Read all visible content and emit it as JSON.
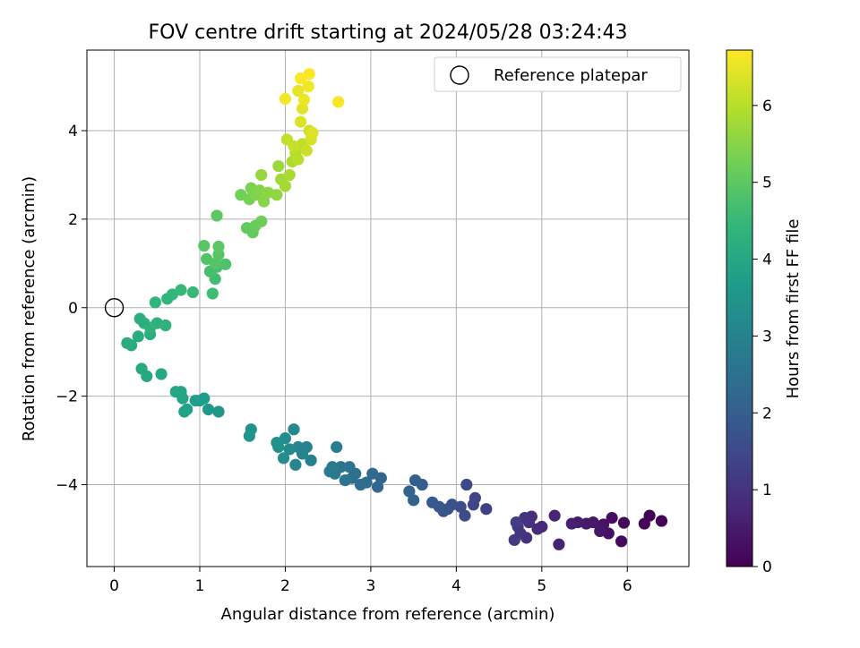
{
  "chart_data": {
    "type": "scatter",
    "title": "FOV centre drift starting at 2024/05/28 03:24:43",
    "xlabel": "Angular distance from reference (arcmin)",
    "ylabel": "Rotation from reference (arcmin)",
    "xlim": [
      -0.32,
      6.72
    ],
    "ylim": [
      -5.85,
      5.82
    ],
    "xticks": [
      0,
      1,
      2,
      3,
      4,
      5,
      6
    ],
    "xtick_labels": [
      "0",
      "1",
      "2",
      "3",
      "4",
      "5",
      "6"
    ],
    "yticks": [
      -4,
      -2,
      0,
      2,
      4
    ],
    "ytick_labels": [
      "−4",
      "−2",
      "0",
      "2",
      "4"
    ],
    "grid": true,
    "legend": {
      "position": "top-right",
      "entries": [
        "Reference platepar"
      ]
    },
    "reference_point": {
      "x": 0,
      "y": 0,
      "label": "Reference platepar"
    },
    "colorbar": {
      "label": "Hours from first FF file",
      "colormap": "viridis",
      "range": [
        0,
        6.72
      ],
      "ticks": [
        0,
        1,
        2,
        3,
        4,
        5,
        6
      ],
      "tick_labels": [
        "0",
        "1",
        "2",
        "3",
        "4",
        "5",
        "6"
      ]
    },
    "colormap_stops": [
      "#440154",
      "#482878",
      "#3e4989",
      "#31688e",
      "#26828e",
      "#1f9e89",
      "#35b779",
      "#6ece58",
      "#b5de2b",
      "#fde725"
    ],
    "series": [
      {
        "points": [
          [
            6.4,
            -4.82,
            0.02
          ],
          [
            6.26,
            -4.7,
            0.05
          ],
          [
            6.2,
            -4.88,
            0.1
          ],
          [
            5.96,
            -4.86,
            0.15
          ],
          [
            5.93,
            -5.28,
            0.2
          ],
          [
            5.82,
            -4.75,
            0.25
          ],
          [
            5.78,
            -5.1,
            0.3
          ],
          [
            5.72,
            -4.9,
            0.35
          ],
          [
            5.68,
            -5.05,
            0.4
          ],
          [
            5.6,
            -4.85,
            0.45
          ],
          [
            5.52,
            -4.88,
            0.5
          ],
          [
            5.42,
            -4.85,
            0.55
          ],
          [
            5.35,
            -4.88,
            0.6
          ],
          [
            5.2,
            -5.35,
            0.65
          ],
          [
            5.15,
            -4.7,
            0.7
          ],
          [
            5.0,
            -4.95,
            0.75
          ],
          [
            4.95,
            -5.0,
            0.8
          ],
          [
            4.88,
            -4.72,
            0.85
          ],
          [
            4.85,
            -4.85,
            0.9
          ],
          [
            4.82,
            -5.2,
            0.95
          ],
          [
            4.8,
            -4.75,
            1.0
          ],
          [
            4.75,
            -5.1,
            1.05
          ],
          [
            4.72,
            -4.95,
            1.1
          ],
          [
            4.68,
            -5.25,
            1.15
          ],
          [
            4.7,
            -4.85,
            1.2
          ],
          [
            4.35,
            -4.55,
            1.3
          ],
          [
            4.22,
            -4.3,
            1.4
          ],
          [
            4.2,
            -4.45,
            1.45
          ],
          [
            4.12,
            -4.0,
            1.5
          ],
          [
            4.1,
            -4.7,
            1.55
          ],
          [
            4.05,
            -4.5,
            1.6
          ],
          [
            3.95,
            -4.45,
            1.7
          ],
          [
            3.9,
            -4.55,
            1.75
          ],
          [
            3.85,
            -4.6,
            1.8
          ],
          [
            3.8,
            -4.5,
            1.85
          ],
          [
            3.72,
            -4.4,
            1.9
          ],
          [
            3.6,
            -4.0,
            2.0
          ],
          [
            3.52,
            -3.9,
            2.05
          ],
          [
            3.5,
            -4.35,
            2.1
          ],
          [
            3.45,
            -4.15,
            2.15
          ],
          [
            3.12,
            -3.85,
            2.2
          ],
          [
            3.08,
            -4.05,
            2.25
          ],
          [
            3.02,
            -3.75,
            2.3
          ],
          [
            2.95,
            -3.95,
            2.35
          ],
          [
            2.88,
            -4.0,
            2.4
          ],
          [
            2.82,
            -3.75,
            2.45
          ],
          [
            2.78,
            -3.85,
            2.5
          ],
          [
            2.75,
            -3.6,
            2.55
          ],
          [
            2.7,
            -3.9,
            2.6
          ],
          [
            2.65,
            -3.6,
            2.65
          ],
          [
            2.58,
            -3.75,
            2.7
          ],
          [
            2.55,
            -3.6,
            2.75
          ],
          [
            2.52,
            -3.7,
            2.8
          ],
          [
            2.6,
            -3.15,
            2.85
          ],
          [
            2.3,
            -3.45,
            2.9
          ],
          [
            2.25,
            -3.15,
            2.95
          ],
          [
            2.2,
            -3.3,
            3.0
          ],
          [
            2.15,
            -3.15,
            3.05
          ],
          [
            2.12,
            -3.55,
            3.1
          ],
          [
            2.1,
            -2.75,
            3.15
          ],
          [
            2.05,
            -3.2,
            3.2
          ],
          [
            2.0,
            -2.95,
            3.25
          ],
          [
            1.98,
            -3.4,
            3.3
          ],
          [
            1.92,
            -3.15,
            3.35
          ],
          [
            1.9,
            -3.05,
            3.4
          ],
          [
            1.6,
            -2.75,
            3.45
          ],
          [
            1.58,
            -2.9,
            3.5
          ],
          [
            1.22,
            -2.35,
            3.55
          ],
          [
            1.1,
            -2.3,
            3.6
          ],
          [
            1.05,
            -2.05,
            3.65
          ],
          [
            1.0,
            -2.1,
            3.7
          ],
          [
            0.95,
            -2.1,
            3.75
          ],
          [
            0.85,
            -2.3,
            3.8
          ],
          [
            0.82,
            -2.35,
            3.85
          ],
          [
            0.8,
            -2.05,
            3.9
          ],
          [
            0.78,
            -1.9,
            3.95
          ],
          [
            0.72,
            -1.9,
            3.97
          ],
          [
            0.55,
            -1.5,
            4.0
          ],
          [
            0.38,
            -1.55,
            4.02
          ],
          [
            0.32,
            -1.38,
            4.05
          ],
          [
            0.2,
            -0.85,
            4.1
          ],
          [
            0.15,
            -0.8,
            4.12
          ],
          [
            0.28,
            -0.65,
            4.15
          ],
          [
            0.42,
            -0.6,
            4.18
          ],
          [
            0.3,
            -0.25,
            4.2
          ],
          [
            0.35,
            -0.35,
            4.22
          ],
          [
            0.5,
            -0.35,
            4.25
          ],
          [
            0.42,
            -0.45,
            4.28
          ],
          [
            0.6,
            -0.4,
            4.3
          ],
          [
            0.48,
            0.12,
            4.35
          ],
          [
            0.62,
            0.2,
            4.4
          ],
          [
            0.68,
            0.3,
            4.45
          ],
          [
            0.78,
            0.4,
            4.5
          ],
          [
            0.92,
            0.35,
            4.55
          ],
          [
            1.15,
            0.32,
            4.6
          ],
          [
            1.18,
            0.65,
            4.65
          ],
          [
            1.12,
            0.82,
            4.7
          ],
          [
            1.2,
            0.92,
            4.75
          ],
          [
            1.3,
            0.98,
            4.8
          ],
          [
            1.08,
            1.1,
            4.85
          ],
          [
            1.18,
            1.0,
            4.9
          ],
          [
            1.22,
            1.2,
            4.92
          ],
          [
            1.05,
            1.4,
            4.95
          ],
          [
            1.22,
            1.38,
            4.98
          ],
          [
            1.2,
            2.08,
            5.0
          ],
          [
            1.55,
            1.8,
            5.05
          ],
          [
            1.62,
            1.7,
            5.1
          ],
          [
            1.65,
            1.85,
            5.15
          ],
          [
            1.72,
            1.95,
            5.2
          ],
          [
            1.48,
            2.55,
            5.25
          ],
          [
            1.58,
            2.45,
            5.3
          ],
          [
            1.6,
            2.7,
            5.35
          ],
          [
            1.65,
            2.55,
            5.4
          ],
          [
            1.7,
            2.65,
            5.45
          ],
          [
            1.75,
            2.4,
            5.5
          ],
          [
            1.8,
            2.6,
            5.55
          ],
          [
            1.9,
            2.55,
            5.6
          ],
          [
            1.72,
            3.0,
            5.65
          ],
          [
            1.92,
            3.2,
            5.7
          ],
          [
            1.95,
            2.9,
            5.75
          ],
          [
            2.0,
            2.75,
            5.8
          ],
          [
            2.05,
            3.0,
            5.85
          ],
          [
            2.08,
            3.3,
            5.9
          ],
          [
            2.12,
            3.5,
            5.95
          ],
          [
            2.15,
            3.35,
            6.0
          ],
          [
            2.2,
            3.7,
            6.05
          ],
          [
            2.02,
            3.8,
            6.1
          ],
          [
            2.1,
            3.65,
            6.15
          ],
          [
            2.25,
            3.55,
            6.2
          ],
          [
            2.28,
            4.0,
            6.25
          ],
          [
            2.3,
            3.8,
            6.3
          ],
          [
            2.18,
            4.2,
            6.35
          ],
          [
            2.32,
            3.95,
            6.4
          ],
          [
            2.2,
            4.5,
            6.45
          ],
          [
            2.15,
            4.9,
            6.5
          ],
          [
            2.22,
            4.7,
            6.55
          ],
          [
            2.27,
            5.0,
            6.6
          ],
          [
            2.0,
            4.72,
            6.62
          ],
          [
            2.62,
            4.65,
            6.65
          ],
          [
            2.28,
            5.28,
            6.68
          ],
          [
            2.18,
            5.18,
            6.7
          ]
        ]
      }
    ]
  }
}
